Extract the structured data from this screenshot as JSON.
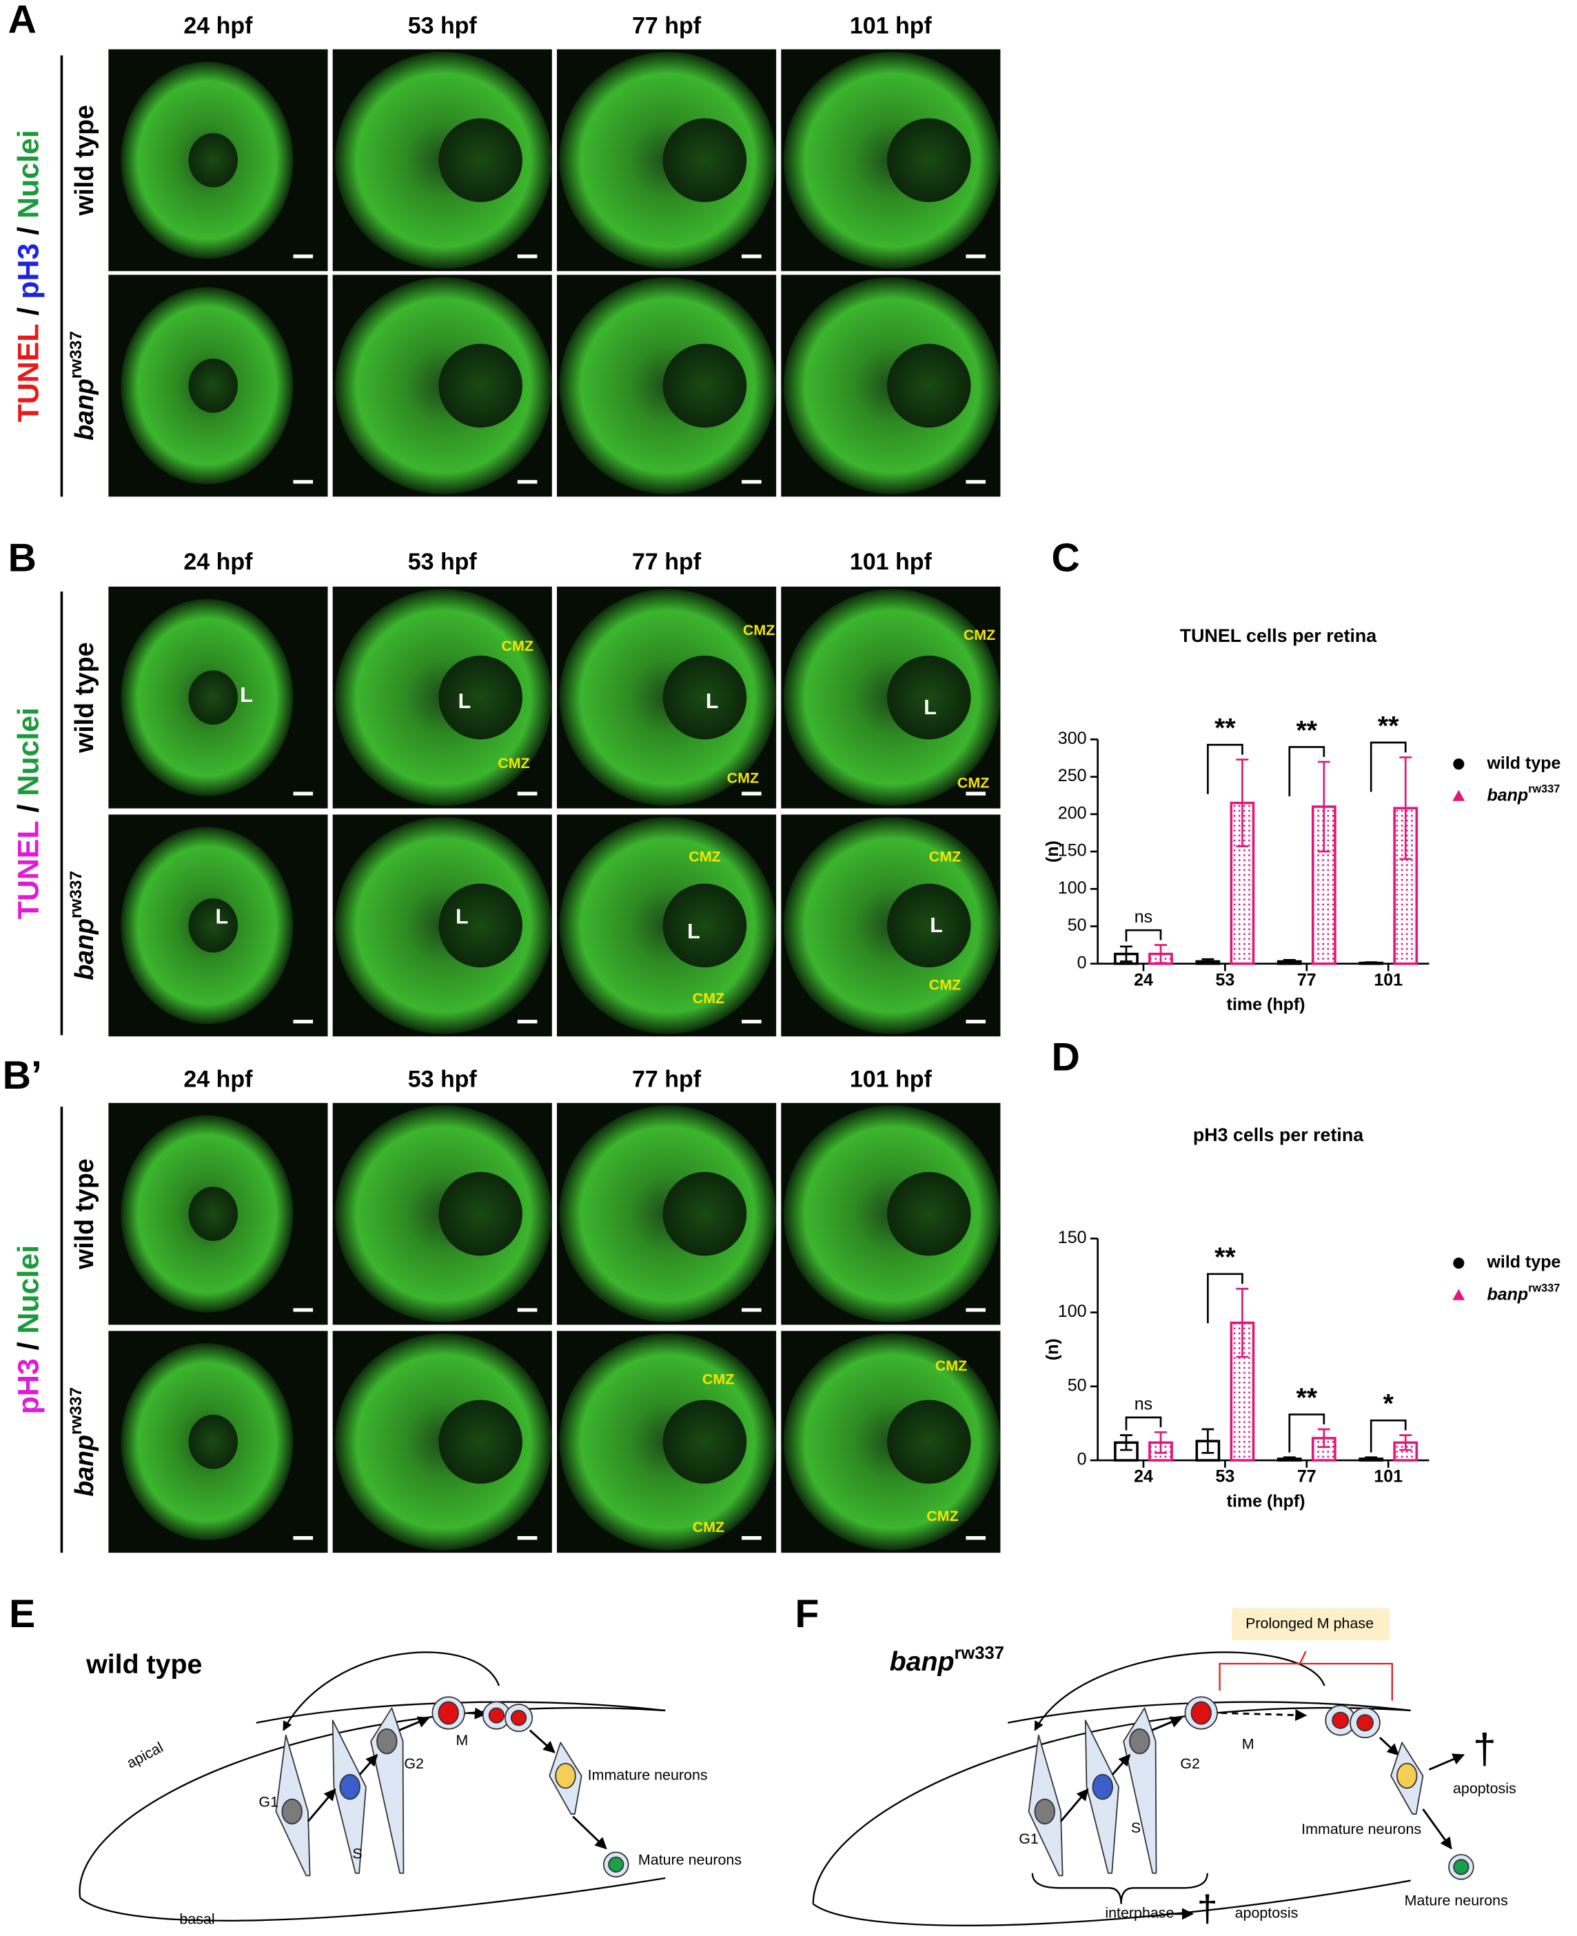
{
  "panels": {
    "A": {
      "letter": "A",
      "stain": [
        {
          "text": "TUNEL",
          "color": "#e8191b"
        },
        {
          "text": " / ",
          "color": "#000000"
        },
        {
          "text": "pH3",
          "color": "#1d24e0"
        },
        {
          "text": " / ",
          "color": "#000000"
        },
        {
          "text": "Nuclei",
          "color": "#1b9a3c"
        }
      ],
      "timepoints": [
        "24 hpf",
        "53 hpf",
        "77 hpf",
        "101 hpf"
      ],
      "rows": [
        {
          "label": "wild type"
        },
        {
          "label": "banp",
          "label_sup": "rw337"
        }
      ]
    },
    "B": {
      "letter": "B",
      "stain": [
        {
          "text": "TUNEL",
          "color": "#e01ad6"
        },
        {
          "text": " / ",
          "color": "#000000"
        },
        {
          "text": "Nuclei",
          "color": "#1b9a3c"
        }
      ],
      "timepoints": [
        "24 hpf",
        "53 hpf",
        "77 hpf",
        "101 hpf"
      ],
      "rows": [
        {
          "label": "wild type"
        },
        {
          "label": "banp",
          "label_sup": "rw337"
        }
      ],
      "annotations": [
        [
          [
            "L"
          ],
          [
            "CMZ",
            "L",
            "CMZ"
          ],
          [
            "CMZ",
            "L",
            "CMZ"
          ],
          [
            "CMZ",
            "L",
            "CMZ"
          ]
        ],
        [
          [
            "L"
          ],
          [
            "L"
          ],
          [
            "CMZ",
            "L",
            "CMZ"
          ],
          [
            "CMZ",
            "L",
            "CMZ"
          ]
        ]
      ]
    },
    "B_prime": {
      "letter": "B’",
      "stain": [
        {
          "text": "pH3",
          "color": "#e01ad6"
        },
        {
          "text": " / ",
          "color": "#000000"
        },
        {
          "text": "Nuclei",
          "color": "#1b9a3c"
        }
      ],
      "timepoints": [
        "24 hpf",
        "53 hpf",
        "77 hpf",
        "101 hpf"
      ],
      "rows": [
        {
          "label": "wild type"
        },
        {
          "label": "banp",
          "label_sup": "rw337"
        }
      ],
      "annotations": [
        [
          [],
          [],
          [],
          []
        ],
        [
          [],
          [],
          [
            "CMZ",
            "CMZ"
          ],
          [
            "CMZ",
            "CMZ"
          ]
        ]
      ]
    }
  },
  "chart_data": [
    {
      "type": "bar",
      "panel_letter": "C",
      "title": "TUNEL cells per retina",
      "categories": [
        "24",
        "53",
        "77",
        "101"
      ],
      "series": [
        {
          "name": "wild type",
          "color": "#000000",
          "values": [
            13,
            3,
            3,
            1
          ],
          "errors": [
            10,
            3,
            2,
            1
          ]
        },
        {
          "name": "banp",
          "name_sup": "rw337",
          "color": "#e0177a",
          "values": [
            13,
            215,
            210,
            208
          ],
          "errors": [
            12,
            58,
            60,
            68
          ]
        }
      ],
      "significance": [
        "ns",
        "**",
        "**",
        "**"
      ],
      "ylim": [
        0,
        300
      ],
      "yticks": [
        0,
        50,
        100,
        150,
        200,
        250,
        300
      ],
      "ylabel": "(n)",
      "xlabel": "time (hpf)"
    },
    {
      "type": "bar",
      "panel_letter": "D",
      "title": "pH3 cells per retina",
      "categories": [
        "24",
        "53",
        "77",
        "101"
      ],
      "series": [
        {
          "name": "wild type",
          "color": "#000000",
          "values": [
            12,
            13,
            1,
            1
          ],
          "errors": [
            5,
            8,
            1,
            1
          ]
        },
        {
          "name": "banp",
          "name_sup": "rw337",
          "color": "#e0177a",
          "values": [
            12,
            93,
            15,
            12
          ],
          "errors": [
            7,
            23,
            6,
            5
          ]
        }
      ],
      "significance": [
        "ns",
        "**",
        "**",
        "*"
      ],
      "ylim": [
        0,
        150
      ],
      "yticks": [
        0,
        50,
        100,
        150
      ],
      "ylabel": "(n)",
      "xlabel": "time (hpf)"
    }
  ],
  "diagrams": {
    "E": {
      "letter": "E",
      "title": "wild type",
      "labels": {
        "g1": "G1",
        "s": "S",
        "g2": "G2",
        "m": "M",
        "immature": "Immature neurons",
        "mature": "Mature neurons",
        "apical": "apical",
        "basal": "basal"
      }
    },
    "F": {
      "letter": "F",
      "title": "banp",
      "title_sup": "rw337",
      "labels": {
        "g1": "G1",
        "s": "S",
        "g2": "G2",
        "m": "M",
        "immature": "Immature neurons",
        "mature": "Mature neurons",
        "apoptosis_1": "apoptosis",
        "interphase": "interphase",
        "apoptosis_2": "apoptosis",
        "prolonged": "Prolonged M phase",
        "death_mark": "†"
      }
    }
  }
}
